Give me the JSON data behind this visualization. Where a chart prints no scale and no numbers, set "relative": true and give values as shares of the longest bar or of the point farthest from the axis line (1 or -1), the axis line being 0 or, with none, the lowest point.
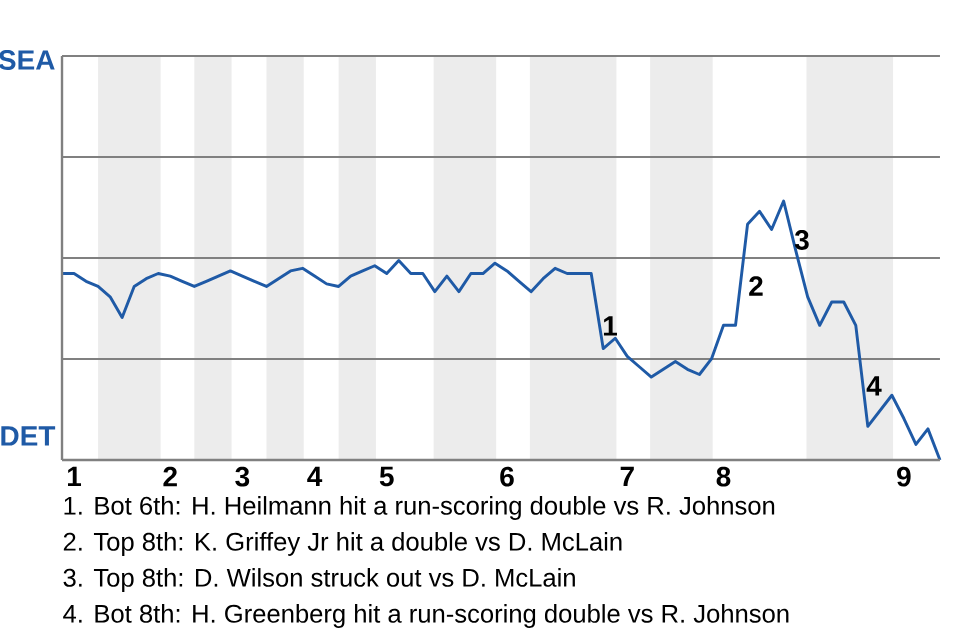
{
  "chart_data": {
    "type": "line",
    "relative": true,
    "categories": [
      null,
      "1",
      null,
      null,
      null,
      null,
      null,
      null,
      null,
      "2",
      null,
      null,
      null,
      null,
      null,
      "3",
      null,
      null,
      null,
      null,
      null,
      "4",
      null,
      null,
      null,
      null,
      null,
      "5",
      null,
      null,
      null,
      null,
      null,
      null,
      null,
      null,
      null,
      "6",
      null,
      null,
      null,
      null,
      null,
      null,
      null,
      null,
      null,
      "7",
      null,
      null,
      null,
      null,
      null,
      null,
      null,
      "8",
      null,
      null,
      null,
      null,
      null,
      null,
      null,
      null,
      null,
      null,
      null,
      null,
      null,
      null,
      "9",
      null,
      null,
      null
    ],
    "marker": "none",
    "line_style": "solid",
    "ref_lines": [
      {
        "axis": "y",
        "value": 0.39,
        "color": "#808080"
      },
      {
        "axis": "y",
        "value": 0.78,
        "color": "#808080"
      },
      {
        "axis": "y",
        "value": 1.17,
        "color": "#808080"
      },
      {
        "axis": "y",
        "value": 1.56,
        "color": "#808080"
      }
    ],
    "series": [
      {
        "color": "#1f5aa6",
        "values": [
          0.72,
          0.72,
          0.69,
          0.67,
          0.63,
          0.55,
          0.67,
          0.7,
          0.72,
          0.71,
          0.69,
          0.67,
          0.69,
          0.71,
          0.73,
          0.71,
          0.69,
          0.67,
          0.7,
          0.73,
          0.74,
          0.71,
          0.68,
          0.67,
          0.71,
          0.73,
          0.75,
          0.72,
          0.77,
          0.72,
          0.72,
          0.65,
          0.71,
          0.65,
          0.72,
          0.72,
          0.76,
          0.73,
          0.69,
          0.65,
          0.7,
          0.74,
          0.72,
          0.72,
          0.72,
          0.43,
          0.47,
          0.4,
          0.36,
          0.32,
          0.35,
          0.38,
          0.35,
          0.33,
          0.39,
          0.52,
          0.52,
          0.91,
          0.96,
          0.89,
          1,
          0.81,
          0.63,
          0.52,
          0.61,
          0.61,
          0.52,
          0.13,
          0.19,
          0.25,
          0.16,
          0.06,
          0.12,
          0
        ]
      }
    ],
    "annotations": [
      "SEA",
      "DET",
      "1",
      "2",
      "3",
      "4",
      "1. Bot 6th: H. Heilmann hit a run-scoring double vs R. Johnson",
      "2. Top 8th: K. Griffey Jr hit a double vs D. McLain",
      "3. Top 8th: D. Wilson struck out vs D. McLain",
      "4. Bot 8th: H. Greenberg hit a run-scoring double vs R. Johnson"
    ]
  }
}
